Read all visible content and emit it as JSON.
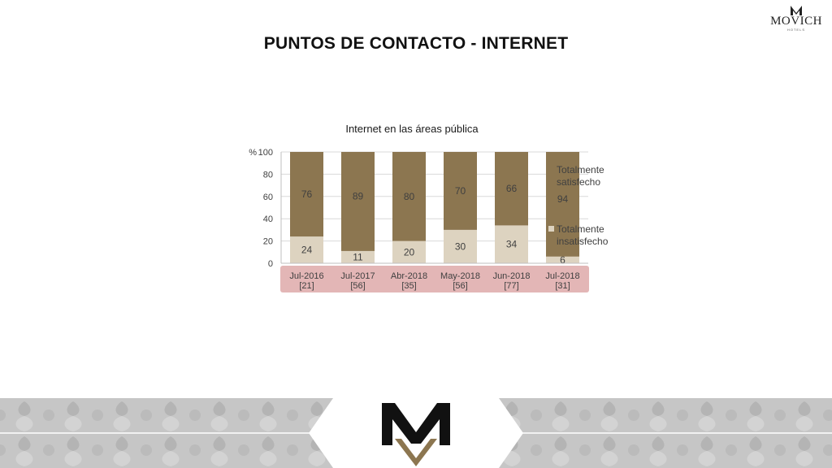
{
  "header": {
    "title": "PUNTOS DE CONTACTO - INTERNET",
    "brand_name": "MOVICH",
    "brand_sub": "HOTELS"
  },
  "colors": {
    "satisfied": "#8c7650",
    "unsatisfied": "#ddd3c0",
    "category_band": "#e3b6b6",
    "text": "#404040",
    "footer_bg": "#c8c8c8",
    "footer_center": "#ffffff",
    "logo_dark": "#111111",
    "logo_gold": "#8c7650"
  },
  "chart_data": {
    "type": "bar",
    "stacked": true,
    "title": "Internet en las áreas pública",
    "ylabel": "%",
    "ylim": [
      0,
      100
    ],
    "yticks": [
      0,
      20,
      40,
      60,
      80,
      100
    ],
    "grid": true,
    "legend_position": "right",
    "categories": [
      [
        "Jul-2016",
        "[21]"
      ],
      [
        "Jul-2017",
        "[56]"
      ],
      [
        "Abr-2018",
        "[35]"
      ],
      [
        "May-2018",
        "[56]"
      ],
      [
        "Jun-2018",
        "[77]"
      ],
      [
        "Jul-2018",
        "[31]"
      ]
    ],
    "series": [
      {
        "name": "Totalmente insatisfecho",
        "values": [
          24,
          11,
          20,
          30,
          34,
          6
        ]
      },
      {
        "name": "Totalmente satisfecho",
        "values": [
          76,
          89,
          80,
          70,
          66,
          94
        ]
      }
    ]
  }
}
